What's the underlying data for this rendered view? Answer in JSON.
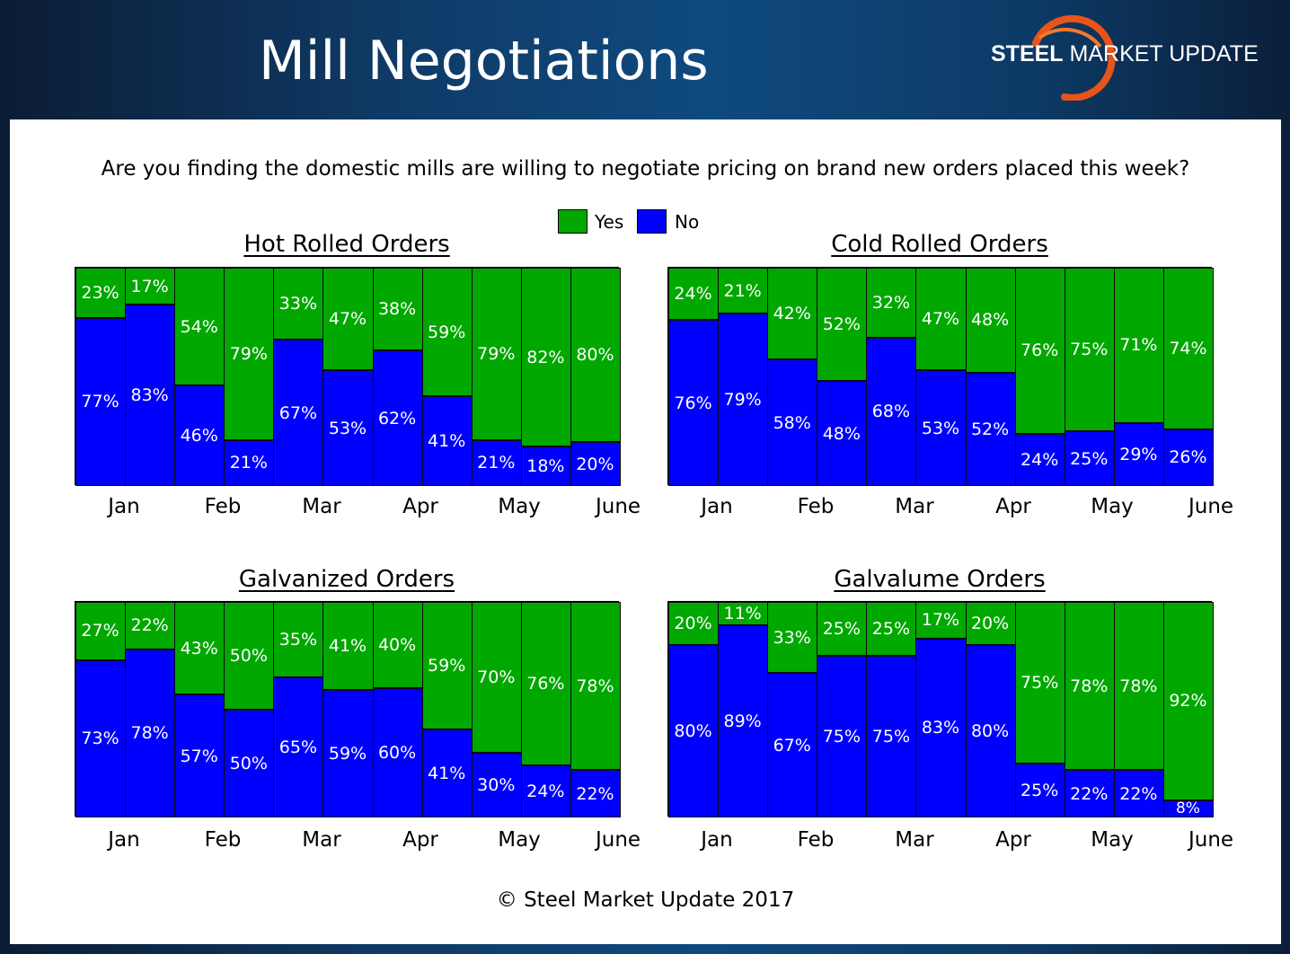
{
  "header": {
    "title": "Mill Negotiations",
    "logo_bold": "STEEL",
    "logo_rest": " MARKET UPDATE"
  },
  "question": "Are you finding the domestic mills are willing to negotiate pricing on brand new orders placed this week?",
  "legend": {
    "yes": "Yes",
    "no": "No"
  },
  "colors": {
    "yes": "#00a800",
    "no": "#0000ff",
    "logo_arc": "#e8541a"
  },
  "footer": "© Steel Market Update 2017",
  "chart_data": [
    {
      "type": "bar",
      "stacked": true,
      "title": "Hot Rolled Orders",
      "x_tick_labels": [
        "Jan",
        "Feb",
        "Mar",
        "Apr",
        "May",
        "June"
      ],
      "series": [
        {
          "name": "No",
          "values": [
            77,
            83,
            46,
            21,
            67,
            53,
            62,
            41,
            21,
            18,
            20
          ]
        },
        {
          "name": "Yes",
          "values": [
            23,
            17,
            54,
            79,
            33,
            47,
            38,
            59,
            79,
            82,
            80
          ]
        }
      ],
      "ylim": [
        0,
        100
      ]
    },
    {
      "type": "bar",
      "stacked": true,
      "title": "Cold Rolled Orders",
      "x_tick_labels": [
        "Jan",
        "Feb",
        "Mar",
        "Apr",
        "May",
        "June"
      ],
      "series": [
        {
          "name": "No",
          "values": [
            76,
            79,
            58,
            48,
            68,
            53,
            52,
            24,
            25,
            29,
            26
          ]
        },
        {
          "name": "Yes",
          "values": [
            24,
            21,
            42,
            52,
            32,
            47,
            48,
            76,
            75,
            71,
            74
          ]
        }
      ],
      "ylim": [
        0,
        100
      ]
    },
    {
      "type": "bar",
      "stacked": true,
      "title": "Galvanized Orders",
      "x_tick_labels": [
        "Jan",
        "Feb",
        "Mar",
        "Apr",
        "May",
        "June"
      ],
      "series": [
        {
          "name": "No",
          "values": [
            73,
            78,
            57,
            50,
            65,
            59,
            60,
            41,
            30,
            24,
            22
          ]
        },
        {
          "name": "Yes",
          "values": [
            27,
            22,
            43,
            50,
            35,
            41,
            40,
            59,
            70,
            76,
            78
          ]
        }
      ],
      "ylim": [
        0,
        100
      ]
    },
    {
      "type": "bar",
      "stacked": true,
      "title": "Galvalume Orders",
      "x_tick_labels": [
        "Jan",
        "Feb",
        "Mar",
        "Apr",
        "May",
        "June"
      ],
      "series": [
        {
          "name": "No",
          "values": [
            80,
            89,
            67,
            75,
            75,
            83,
            80,
            25,
            22,
            22,
            8
          ]
        },
        {
          "name": "Yes",
          "values": [
            20,
            11,
            33,
            25,
            25,
            17,
            20,
            75,
            78,
            78,
            92
          ]
        }
      ],
      "ylim": [
        0,
        100
      ]
    }
  ]
}
